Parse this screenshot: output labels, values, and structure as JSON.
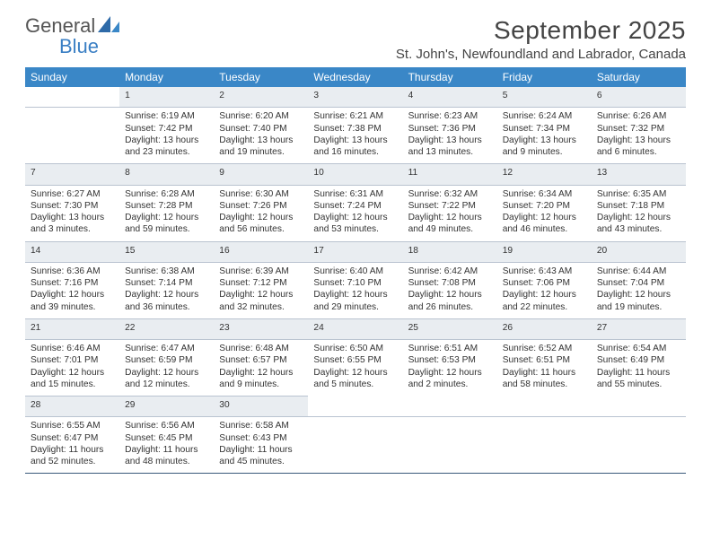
{
  "logo": {
    "word1": "General",
    "word2": "Blue"
  },
  "title": "September 2025",
  "subtitle": "St. John's, Newfoundland and Labrador, Canada",
  "colors": {
    "header_bg": "#3a87c7",
    "header_text": "#ffffff",
    "daynum_bg": "#e9edf1",
    "daynum_text": "#5e6b78",
    "row_divider": "#3a5a7a",
    "body_text": "#333333",
    "logo_gray": "#555555",
    "logo_blue": "#3a7fc4"
  },
  "daysOfWeek": [
    "Sunday",
    "Monday",
    "Tuesday",
    "Wednesday",
    "Thursday",
    "Friday",
    "Saturday"
  ],
  "weeks": [
    {
      "nums": [
        "",
        "1",
        "2",
        "3",
        "4",
        "5",
        "6"
      ],
      "cells": [
        null,
        {
          "sunrise": "Sunrise: 6:19 AM",
          "sunset": "Sunset: 7:42 PM",
          "day1": "Daylight: 13 hours",
          "day2": "and 23 minutes."
        },
        {
          "sunrise": "Sunrise: 6:20 AM",
          "sunset": "Sunset: 7:40 PM",
          "day1": "Daylight: 13 hours",
          "day2": "and 19 minutes."
        },
        {
          "sunrise": "Sunrise: 6:21 AM",
          "sunset": "Sunset: 7:38 PM",
          "day1": "Daylight: 13 hours",
          "day2": "and 16 minutes."
        },
        {
          "sunrise": "Sunrise: 6:23 AM",
          "sunset": "Sunset: 7:36 PM",
          "day1": "Daylight: 13 hours",
          "day2": "and 13 minutes."
        },
        {
          "sunrise": "Sunrise: 6:24 AM",
          "sunset": "Sunset: 7:34 PM",
          "day1": "Daylight: 13 hours",
          "day2": "and 9 minutes."
        },
        {
          "sunrise": "Sunrise: 6:26 AM",
          "sunset": "Sunset: 7:32 PM",
          "day1": "Daylight: 13 hours",
          "day2": "and 6 minutes."
        }
      ]
    },
    {
      "nums": [
        "7",
        "8",
        "9",
        "10",
        "11",
        "12",
        "13"
      ],
      "cells": [
        {
          "sunrise": "Sunrise: 6:27 AM",
          "sunset": "Sunset: 7:30 PM",
          "day1": "Daylight: 13 hours",
          "day2": "and 3 minutes."
        },
        {
          "sunrise": "Sunrise: 6:28 AM",
          "sunset": "Sunset: 7:28 PM",
          "day1": "Daylight: 12 hours",
          "day2": "and 59 minutes."
        },
        {
          "sunrise": "Sunrise: 6:30 AM",
          "sunset": "Sunset: 7:26 PM",
          "day1": "Daylight: 12 hours",
          "day2": "and 56 minutes."
        },
        {
          "sunrise": "Sunrise: 6:31 AM",
          "sunset": "Sunset: 7:24 PM",
          "day1": "Daylight: 12 hours",
          "day2": "and 53 minutes."
        },
        {
          "sunrise": "Sunrise: 6:32 AM",
          "sunset": "Sunset: 7:22 PM",
          "day1": "Daylight: 12 hours",
          "day2": "and 49 minutes."
        },
        {
          "sunrise": "Sunrise: 6:34 AM",
          "sunset": "Sunset: 7:20 PM",
          "day1": "Daylight: 12 hours",
          "day2": "and 46 minutes."
        },
        {
          "sunrise": "Sunrise: 6:35 AM",
          "sunset": "Sunset: 7:18 PM",
          "day1": "Daylight: 12 hours",
          "day2": "and 43 minutes."
        }
      ]
    },
    {
      "nums": [
        "14",
        "15",
        "16",
        "17",
        "18",
        "19",
        "20"
      ],
      "cells": [
        {
          "sunrise": "Sunrise: 6:36 AM",
          "sunset": "Sunset: 7:16 PM",
          "day1": "Daylight: 12 hours",
          "day2": "and 39 minutes."
        },
        {
          "sunrise": "Sunrise: 6:38 AM",
          "sunset": "Sunset: 7:14 PM",
          "day1": "Daylight: 12 hours",
          "day2": "and 36 minutes."
        },
        {
          "sunrise": "Sunrise: 6:39 AM",
          "sunset": "Sunset: 7:12 PM",
          "day1": "Daylight: 12 hours",
          "day2": "and 32 minutes."
        },
        {
          "sunrise": "Sunrise: 6:40 AM",
          "sunset": "Sunset: 7:10 PM",
          "day1": "Daylight: 12 hours",
          "day2": "and 29 minutes."
        },
        {
          "sunrise": "Sunrise: 6:42 AM",
          "sunset": "Sunset: 7:08 PM",
          "day1": "Daylight: 12 hours",
          "day2": "and 26 minutes."
        },
        {
          "sunrise": "Sunrise: 6:43 AM",
          "sunset": "Sunset: 7:06 PM",
          "day1": "Daylight: 12 hours",
          "day2": "and 22 minutes."
        },
        {
          "sunrise": "Sunrise: 6:44 AM",
          "sunset": "Sunset: 7:04 PM",
          "day1": "Daylight: 12 hours",
          "day2": "and 19 minutes."
        }
      ]
    },
    {
      "nums": [
        "21",
        "22",
        "23",
        "24",
        "25",
        "26",
        "27"
      ],
      "cells": [
        {
          "sunrise": "Sunrise: 6:46 AM",
          "sunset": "Sunset: 7:01 PM",
          "day1": "Daylight: 12 hours",
          "day2": "and 15 minutes."
        },
        {
          "sunrise": "Sunrise: 6:47 AM",
          "sunset": "Sunset: 6:59 PM",
          "day1": "Daylight: 12 hours",
          "day2": "and 12 minutes."
        },
        {
          "sunrise": "Sunrise: 6:48 AM",
          "sunset": "Sunset: 6:57 PM",
          "day1": "Daylight: 12 hours",
          "day2": "and 9 minutes."
        },
        {
          "sunrise": "Sunrise: 6:50 AM",
          "sunset": "Sunset: 6:55 PM",
          "day1": "Daylight: 12 hours",
          "day2": "and 5 minutes."
        },
        {
          "sunrise": "Sunrise: 6:51 AM",
          "sunset": "Sunset: 6:53 PM",
          "day1": "Daylight: 12 hours",
          "day2": "and 2 minutes."
        },
        {
          "sunrise": "Sunrise: 6:52 AM",
          "sunset": "Sunset: 6:51 PM",
          "day1": "Daylight: 11 hours",
          "day2": "and 58 minutes."
        },
        {
          "sunrise": "Sunrise: 6:54 AM",
          "sunset": "Sunset: 6:49 PM",
          "day1": "Daylight: 11 hours",
          "day2": "and 55 minutes."
        }
      ]
    },
    {
      "nums": [
        "28",
        "29",
        "30",
        "",
        "",
        "",
        ""
      ],
      "cells": [
        {
          "sunrise": "Sunrise: 6:55 AM",
          "sunset": "Sunset: 6:47 PM",
          "day1": "Daylight: 11 hours",
          "day2": "and 52 minutes."
        },
        {
          "sunrise": "Sunrise: 6:56 AM",
          "sunset": "Sunset: 6:45 PM",
          "day1": "Daylight: 11 hours",
          "day2": "and 48 minutes."
        },
        {
          "sunrise": "Sunrise: 6:58 AM",
          "sunset": "Sunset: 6:43 PM",
          "day1": "Daylight: 11 hours",
          "day2": "and 45 minutes."
        },
        null,
        null,
        null,
        null
      ]
    }
  ]
}
